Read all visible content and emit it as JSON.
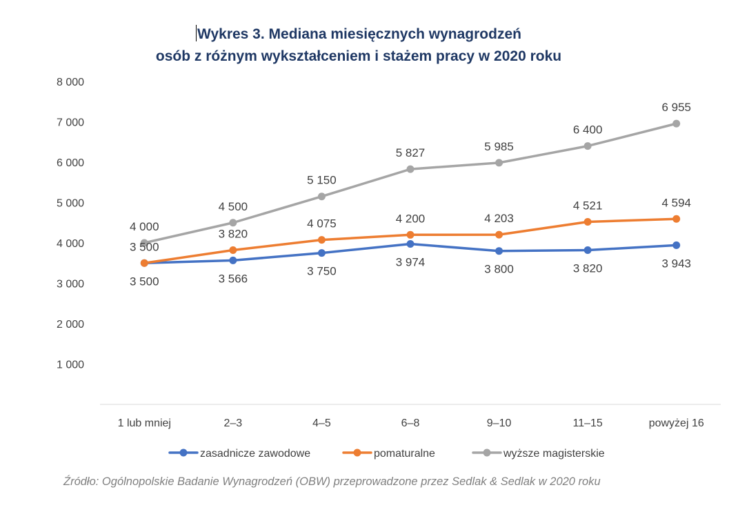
{
  "chart_data": {
    "type": "line",
    "title_line1": "Wykres 3. Mediana miesięcznych wynagrodzeń",
    "title_line2": "osób z różnym wykształceniem i stażem pracy w 2020 roku",
    "categories": [
      "1 lub mniej",
      "2–3",
      "4–5",
      "6–8",
      "9–10",
      "11–15",
      "powyżej 16"
    ],
    "ylim": [
      0,
      8000
    ],
    "yticks": [
      {
        "value": 1000,
        "label": "1 000"
      },
      {
        "value": 2000,
        "label": "2 000"
      },
      {
        "value": 3000,
        "label": "3 000"
      },
      {
        "value": 4000,
        "label": "4 000"
      },
      {
        "value": 5000,
        "label": "5 000"
      },
      {
        "value": 6000,
        "label": "6 000"
      },
      {
        "value": 7000,
        "label": "7 000"
      },
      {
        "value": 8000,
        "label": "8 000"
      }
    ],
    "grid": false,
    "legend_position": "bottom",
    "series": [
      {
        "name": "zasadnicze zawodowe",
        "color": "#4472c4",
        "label_position": "below",
        "values": [
          3500,
          3566,
          3750,
          3974,
          3800,
          3820,
          3943
        ],
        "labels": [
          "3 500",
          "3 566",
          "3 750",
          "3 974",
          "3 800",
          "3 820",
          "3 943"
        ]
      },
      {
        "name": "pomaturalne",
        "color": "#ed7d31",
        "label_position": "above",
        "values": [
          3500,
          3820,
          4075,
          4200,
          4203,
          4521,
          4594
        ],
        "labels": [
          "3 500",
          "3 820",
          "4 075",
          "4 200",
          "4 203",
          "4 521",
          "4 594"
        ]
      },
      {
        "name": "wyższe magisterskie",
        "color": "#a5a5a5",
        "label_position": "above",
        "values": [
          4000,
          4500,
          5150,
          5827,
          5985,
          6400,
          6955
        ],
        "labels": [
          "4 000",
          "4 500",
          "5 150",
          "5 827",
          "5 985",
          "6 400",
          "6 955"
        ]
      }
    ],
    "source": "Źródło: Ogólnopolskie Badanie Wynagrodzeń (OBW) przeprowadzone przez Sedlak & Sedlak w 2020  roku"
  }
}
